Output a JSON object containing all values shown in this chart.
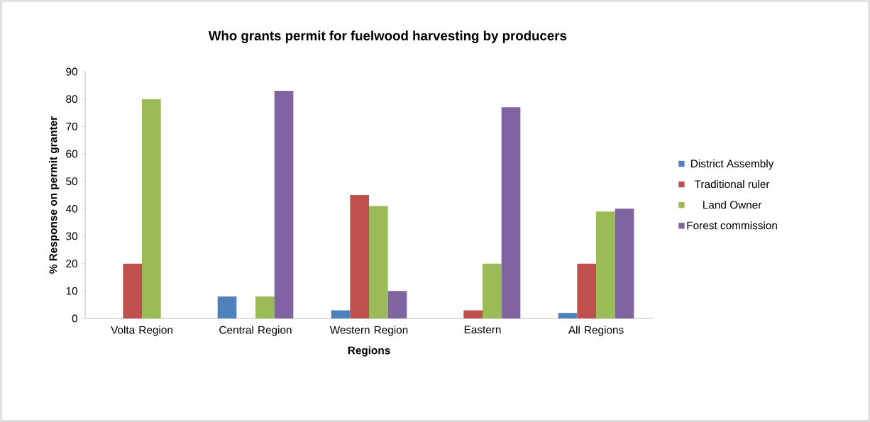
{
  "chart_data": {
    "type": "bar",
    "title": "Who grants permit for fuelwood harvesting by producers",
    "xlabel": "Regions",
    "ylabel": "% Response on permit granter",
    "categories": [
      "Volta Region",
      "Central Region",
      "Western Region",
      "Eastern",
      "All Regions"
    ],
    "series": [
      {
        "name": "District Assembly",
        "color": "#4f81bd",
        "values": [
          0,
          8,
          3,
          0,
          2
        ]
      },
      {
        "name": "Traditional ruler",
        "color": "#c0504d",
        "values": [
          20,
          0,
          45,
          3,
          20
        ]
      },
      {
        "name": "Land Owner",
        "color": "#9bbb59",
        "values": [
          80,
          8,
          41,
          20,
          39
        ]
      },
      {
        "name": "Forest commission",
        "color": "#8064a2",
        "values": [
          0,
          83,
          10,
          77,
          40
        ]
      }
    ],
    "ylim": [
      0,
      90
    ],
    "yticks": [
      0,
      10,
      20,
      30,
      40,
      50,
      60,
      70,
      80,
      90
    ],
    "grid": false,
    "legend": "right"
  }
}
